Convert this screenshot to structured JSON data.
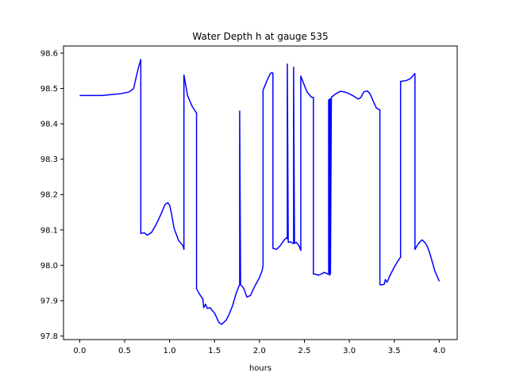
{
  "chart_data": {
    "type": "line",
    "title": "Water Depth h at gauge 535",
    "xlabel": "hours",
    "ylabel": "",
    "xlim": [
      -0.18,
      4.2
    ],
    "ylim": [
      97.79,
      98.62
    ],
    "xticks": [
      0.0,
      0.5,
      1.0,
      1.5,
      2.0,
      2.5,
      3.0,
      3.5,
      4.0
    ],
    "yticks": [
      97.8,
      97.9,
      98.0,
      98.1,
      98.2,
      98.3,
      98.4,
      98.5,
      98.6
    ],
    "xtick_labels": [
      "0.0",
      "0.5",
      "1.0",
      "1.5",
      "2.0",
      "2.5",
      "3.0",
      "3.5",
      "4.0"
    ],
    "ytick_labels": [
      "97.8",
      "97.9",
      "98.0",
      "98.1",
      "98.2",
      "98.3",
      "98.4",
      "98.5",
      "98.6"
    ],
    "grid": false,
    "legend": "none",
    "series": [
      {
        "color": "#0000ff",
        "x": [
          0.0,
          0.25,
          0.45,
          0.55,
          0.6,
          0.65,
          0.68,
          0.68,
          0.72,
          0.75,
          0.8,
          0.85,
          0.9,
          0.95,
          0.98,
          1.0,
          1.02,
          1.05,
          1.1,
          1.15,
          1.16,
          1.16,
          1.2,
          1.25,
          1.3,
          1.3,
          1.33,
          1.35,
          1.37,
          1.38,
          1.4,
          1.42,
          1.45,
          1.5,
          1.55,
          1.58,
          1.6,
          1.63,
          1.66,
          1.7,
          1.74,
          1.77,
          1.78,
          1.78,
          1.79,
          1.81,
          1.83,
          1.86,
          1.9,
          1.95,
          2.0,
          2.03,
          2.04,
          2.04,
          2.08,
          2.12,
          2.14,
          2.15,
          2.15,
          2.19,
          2.23,
          2.27,
          2.29,
          2.3,
          2.31,
          2.31,
          2.32,
          2.32,
          2.35,
          2.37,
          2.38,
          2.38,
          2.39,
          2.41,
          2.44,
          2.46,
          2.46,
          2.49,
          2.53,
          2.58,
          2.6,
          2.6,
          2.62,
          2.66,
          2.7,
          2.72,
          2.74,
          2.76,
          2.77,
          2.77,
          2.78,
          2.78,
          2.79,
          2.79,
          2.8,
          2.85,
          2.9,
          2.95,
          3.0,
          3.05,
          3.1,
          3.13,
          3.16,
          3.2,
          3.23,
          3.27,
          3.3,
          3.33,
          3.34,
          3.34,
          3.37,
          3.39,
          3.4,
          3.42,
          3.45,
          3.5,
          3.54,
          3.56,
          3.57,
          3.57,
          3.63,
          3.68,
          3.72,
          3.73,
          3.73,
          3.76,
          3.78,
          3.81,
          3.84,
          3.87,
          3.9,
          3.95,
          4.0
        ],
        "y": [
          98.48,
          98.48,
          98.485,
          98.49,
          98.5,
          98.555,
          98.582,
          98.09,
          98.092,
          98.085,
          98.093,
          98.115,
          98.142,
          98.172,
          98.177,
          98.17,
          98.148,
          98.105,
          98.07,
          98.055,
          98.045,
          98.538,
          98.48,
          98.45,
          98.43,
          97.934,
          97.92,
          97.912,
          97.905,
          97.88,
          97.89,
          97.878,
          97.88,
          97.865,
          97.838,
          97.833,
          97.838,
          97.845,
          97.86,
          97.885,
          97.92,
          97.94,
          97.945,
          98.436,
          97.945,
          97.94,
          97.932,
          97.91,
          97.915,
          97.942,
          97.965,
          97.985,
          98.0,
          98.495,
          98.52,
          98.542,
          98.545,
          98.542,
          98.048,
          98.045,
          98.055,
          98.07,
          98.075,
          98.078,
          98.075,
          98.569,
          98.072,
          98.065,
          98.066,
          98.062,
          98.062,
          98.56,
          98.062,
          98.065,
          98.055,
          98.042,
          98.535,
          98.515,
          98.49,
          98.475,
          98.475,
          97.975,
          97.975,
          97.972,
          97.977,
          97.98,
          97.978,
          97.975,
          97.975,
          98.468,
          97.972,
          98.47,
          98.47,
          97.975,
          98.475,
          98.485,
          98.492,
          98.49,
          98.485,
          98.478,
          98.47,
          98.475,
          98.49,
          98.493,
          98.485,
          98.462,
          98.445,
          98.44,
          98.44,
          97.945,
          97.945,
          97.947,
          97.96,
          97.952,
          97.97,
          97.995,
          98.012,
          98.02,
          98.022,
          98.52,
          98.522,
          98.528,
          98.54,
          98.542,
          98.045,
          98.058,
          98.065,
          98.072,
          98.065,
          98.052,
          98.03,
          97.985,
          97.955
        ]
      }
    ]
  }
}
